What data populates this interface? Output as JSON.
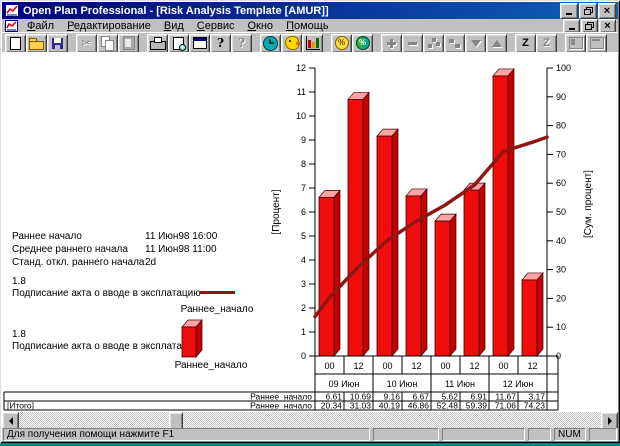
{
  "window": {
    "title": "Open Plan Professional - [Risk Analysis Template [AMUR]]"
  },
  "menu": {
    "items": [
      {
        "label": "Файл"
      },
      {
        "label": "Редактирование"
      },
      {
        "label": "Вид"
      },
      {
        "label": "Сервис"
      },
      {
        "label": "Окно"
      },
      {
        "label": "Помощь"
      }
    ]
  },
  "toolbar": {
    "groups": [
      [
        {
          "name": "new-file",
          "icon": "new",
          "enabled": true
        },
        {
          "name": "open-file",
          "icon": "open",
          "enabled": true
        },
        {
          "name": "save-file",
          "icon": "save",
          "enabled": true
        }
      ],
      [
        {
          "name": "cut",
          "icon": "cut",
          "glyph": "✂",
          "enabled": false
        },
        {
          "name": "copy",
          "icon": "copy",
          "enabled": false
        },
        {
          "name": "paste",
          "icon": "paste",
          "enabled": false
        }
      ],
      [
        {
          "name": "print",
          "icon": "print",
          "enabled": true
        },
        {
          "name": "print-preview",
          "icon": "preview",
          "enabled": true
        },
        {
          "name": "edit-table",
          "icon": "edittable",
          "enabled": true
        },
        {
          "name": "help",
          "icon": "help",
          "glyph": "?",
          "enabled": true
        },
        {
          "name": "context-help",
          "icon": "ctxhelp",
          "glyph": "?",
          "enabled": false
        }
      ],
      [
        {
          "name": "time-analysis",
          "icon": "clock",
          "enabled": true
        },
        {
          "name": "resource-analysis",
          "icon": "bird",
          "enabled": true
        },
        {
          "name": "risk-analysis",
          "icon": "chart3d",
          "enabled": true
        }
      ],
      [
        {
          "name": "cost-analysis",
          "icon": "coin",
          "glyph": "%",
          "enabled": true
        },
        {
          "name": "percent-complete",
          "icon": "wheel",
          "glyph": "%",
          "enabled": true
        }
      ],
      [
        {
          "name": "add-activity",
          "icon": "plus",
          "enabled": false
        },
        {
          "name": "delete-activity",
          "icon": "minus",
          "enabled": false
        },
        {
          "name": "link-activities",
          "icon": "nodes",
          "enabled": false
        },
        {
          "name": "outline",
          "icon": "steps",
          "enabled": false
        },
        {
          "name": "move-down",
          "icon": "adown",
          "enabled": false
        },
        {
          "name": "move-up",
          "icon": "aup",
          "enabled": false
        }
      ],
      [
        {
          "name": "sort",
          "icon": "z",
          "glyph": "Z",
          "enabled": true
        },
        {
          "name": "sort-options",
          "icon": "zlines",
          "glyph": "Z",
          "enabled": false
        }
      ],
      [
        {
          "name": "split-view",
          "icon": "win1",
          "enabled": false
        },
        {
          "name": "arrange-view",
          "icon": "win2",
          "enabled": false
        }
      ]
    ]
  },
  "info_panel": {
    "rows": [
      {
        "label": "Раннее начало",
        "value": "11 Июн98 16:00"
      },
      {
        "label": "Среднее раннего начала",
        "value": "11 Июн98 11:00"
      },
      {
        "label": "Станд. откл.  раннего начала",
        "value": "2d"
      }
    ],
    "legends": [
      {
        "value": "1.8",
        "task": "Подписание акта о вводе в эксплатацию",
        "series": "Раннее_начало",
        "swatch": "line"
      },
      {
        "value": "1.8",
        "task": "Подписание акта о вводе в эксплатацию",
        "series": "Раннее_начало",
        "swatch": "bar"
      }
    ]
  },
  "chart_data": {
    "type": "bar+line",
    "title": "",
    "ylabel_left": "[Процент]",
    "ylabel_right": "[Сум. процент]",
    "ylim_left": [
      0,
      12
    ],
    "ylim_right": [
      0,
      100
    ],
    "ytick_step_left": 1,
    "ytick_step_right": 10,
    "grid": false,
    "categories_hours": [
      "00",
      "12",
      "00",
      "12",
      "00",
      "12",
      "00",
      "12"
    ],
    "categories_dates": [
      "09 Июн",
      "10 Июн",
      "11 Июн",
      "12 Июн"
    ],
    "series": [
      {
        "name": "Раннее_начало",
        "type": "bar",
        "axis": "left",
        "color": "#f20d0d",
        "values": [
          6.61,
          10.69,
          9.16,
          6.67,
          5.62,
          6.91,
          11.67,
          3.17
        ]
      },
      {
        "name": "Раннее_начало",
        "type": "line",
        "axis": "right",
        "color": "#8f1612",
        "values": [
          20.34,
          31.03,
          40.19,
          46.86,
          52.48,
          59.39,
          71.06,
          74.23
        ],
        "edge_start": 13.7,
        "edge_end": 76
      }
    ],
    "colors": {
      "bar_top": "#ffa3a3",
      "bar_side": "#c40000"
    }
  },
  "table": {
    "rows": [
      {
        "label": "",
        "series": "Раннее_начало",
        "values": [
          "6.61",
          "10.69",
          "9.16",
          "6.67",
          "5.62",
          "6.91",
          "11.67",
          "3.17"
        ]
      },
      {
        "label": "[Итого]",
        "series": "Раннее_начало",
        "values": [
          "20.34",
          "31.03",
          "40.19",
          "46.86",
          "52.48",
          "59.39",
          "71.06",
          "74.23"
        ]
      }
    ]
  },
  "status": {
    "message": "Для получения помощи нажмите F1",
    "num_lock": "NUM"
  },
  "colors": {
    "titlebar": "#000080",
    "desktop": "#008080",
    "chrome": "#c0c0c0",
    "bar_red": "#f20d0d",
    "line_dark_red": "#8f1612"
  }
}
